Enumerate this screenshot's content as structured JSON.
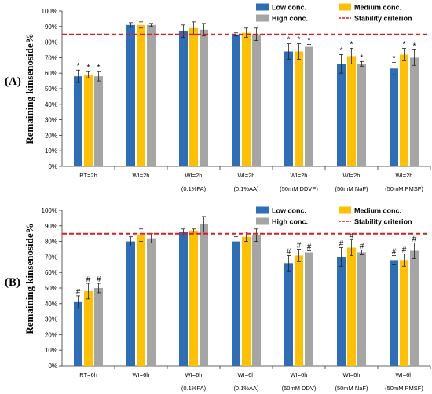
{
  "colors": {
    "low": "#2E6DB8",
    "medium": "#FFC000",
    "high": "#A5A5A5",
    "criterion": "#E41A1C"
  },
  "legend": [
    {
      "key": "low",
      "label": "Low conc."
    },
    {
      "key": "medium",
      "label": "Medium conc."
    },
    {
      "key": "high",
      "label": "High conc."
    },
    {
      "key": "criterion",
      "label": "Stability criterion"
    }
  ],
  "chart_data": [
    {
      "panel_label": "(A)",
      "type": "bar",
      "ylabel": "Remaining kinsenoside%",
      "ylim": [
        0,
        100
      ],
      "yticks": [
        "0%",
        "10%",
        "20%",
        "30%",
        "40%",
        "50%",
        "60%",
        "70%",
        "80%",
        "90%",
        "100%"
      ],
      "stability_criterion": 85,
      "categories": [
        {
          "line1": "RT=2h",
          "line2": ""
        },
        {
          "line1": "WI=2h",
          "line2": ""
        },
        {
          "line1": "WI=2h",
          "line2": "(0.1%FA)"
        },
        {
          "line1": "WI=2h",
          "line2": "(0.1%AA)"
        },
        {
          "line1": "WI=2h",
          "line2": "(50mM DDVP)"
        },
        {
          "line1": "WI=2h",
          "line2": "(50mM NaF)"
        },
        {
          "line1": "WI=2h",
          "line2": "(50mM PMSF)"
        }
      ],
      "series": [
        {
          "name": "Low conc.",
          "key": "low",
          "values": [
            58,
            91,
            87,
            85,
            74,
            66,
            63
          ],
          "errors": [
            4,
            1.5,
            4,
            1,
            5,
            6,
            4
          ],
          "marks": [
            "*",
            "",
            "",
            "",
            "*",
            "*",
            "*"
          ]
        },
        {
          "name": "Medium conc.",
          "key": "medium",
          "values": [
            59,
            91,
            89,
            86,
            74,
            71,
            72
          ],
          "errors": [
            2,
            2,
            4,
            3,
            5,
            5,
            4
          ],
          "marks": [
            "*",
            "",
            "",
            "",
            "*",
            "*",
            "*"
          ]
        },
        {
          "name": "High conc.",
          "key": "high",
          "values": [
            58,
            91,
            88,
            85,
            77,
            66,
            70
          ],
          "errors": [
            3,
            1,
            4,
            4,
            1.5,
            1.5,
            5
          ],
          "marks": [
            "*",
            "",
            "",
            "",
            "*",
            "*",
            "*"
          ]
        }
      ]
    },
    {
      "panel_label": "(B)",
      "type": "bar",
      "ylabel": "Remaining kinsenoside%",
      "ylim": [
        0,
        100
      ],
      "yticks": [
        "0%",
        "10%",
        "20%",
        "30%",
        "40%",
        "50%",
        "60%",
        "70%",
        "80%",
        "90%",
        "100%"
      ],
      "stability_criterion": 85,
      "categories": [
        {
          "line1": "RT=6h",
          "line2": ""
        },
        {
          "line1": "WI=6h",
          "line2": ""
        },
        {
          "line1": "WI=6h",
          "line2": "(0.1%FA)"
        },
        {
          "line1": "WI=6h",
          "line2": "(0.1%AA)"
        },
        {
          "line1": "WI=6h",
          "line2": "(50mM DDV)"
        },
        {
          "line1": "WI=6h",
          "line2": "(50mM NaF)"
        },
        {
          "line1": "WI=6h",
          "line2": "(50mM PMSF)"
        }
      ],
      "series": [
        {
          "name": "Low conc.",
          "key": "low",
          "values": [
            41,
            80,
            86,
            80,
            66,
            70,
            68
          ],
          "errors": [
            4,
            3,
            2,
            3,
            5,
            6,
            3
          ],
          "marks": [
            "#",
            "",
            "",
            "",
            "#",
            "#",
            "#"
          ]
        },
        {
          "name": "Medium conc.",
          "key": "medium",
          "values": [
            48,
            84,
            87,
            83,
            71,
            76,
            68
          ],
          "errors": [
            5,
            4,
            1,
            3,
            4,
            5,
            4
          ],
          "marks": [
            "#",
            "",
            "",
            "",
            "#",
            "#",
            "#"
          ]
        },
        {
          "name": "High conc.",
          "key": "high",
          "values": [
            50,
            82,
            91,
            84,
            73,
            73,
            74
          ],
          "errors": [
            3,
            3,
            5,
            4,
            1,
            1.5,
            5
          ],
          "marks": [
            "#",
            "",
            "",
            "",
            "#",
            "#",
            "#"
          ]
        }
      ]
    }
  ]
}
